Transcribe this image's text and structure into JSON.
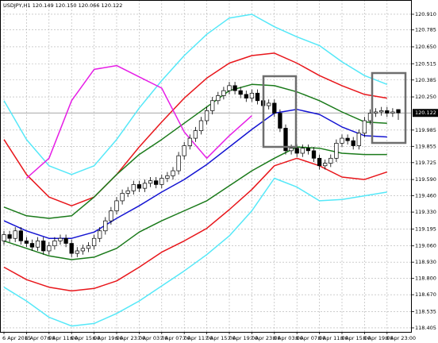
{
  "chart_data": {
    "type": "candlestick",
    "title": "USDJPY,H1 120.149 120.150 120.066 120.122",
    "categories": [
      "6 Apr 2015",
      null,
      null,
      null,
      "6 Apr 07:00",
      null,
      null,
      null,
      "6 Apr 11:00",
      null,
      null,
      null,
      "6 Apr 15:00",
      null,
      null,
      null,
      "6 Apr 19:00",
      null,
      null,
      null,
      "6 Apr 23:00",
      null,
      null,
      null,
      "7 Apr 03:00",
      null,
      null,
      null,
      "7 Apr 07:00",
      null,
      null,
      null,
      "7 Apr 11:00",
      null,
      null,
      null,
      "7 Apr 15:00",
      null,
      null,
      null,
      "7 Apr 19:00",
      null,
      null,
      null,
      "7 Apr 23:00",
      null,
      null,
      null,
      "8 Apr 03:00",
      null,
      null,
      null,
      "8 Apr 07:00",
      null,
      null,
      null,
      "8 Apr 11:00",
      null,
      null,
      null,
      "8 Apr 15:00",
      null,
      null,
      null,
      "8 Apr 19:00",
      null,
      null,
      null,
      "8 Apr 23:00",
      null,
      null
    ],
    "open": [
      119.1,
      119.15,
      119.12,
      119.18,
      119.1,
      119.08,
      119.05,
      119.1,
      119.02,
      119.06,
      119.1,
      119.12,
      119.08,
      119.0,
      119.02,
      119.04,
      119.06,
      119.12,
      119.18,
      119.26,
      119.34,
      119.42,
      119.48,
      119.5,
      119.55,
      119.52,
      119.56,
      119.58,
      119.55,
      119.6,
      119.62,
      119.66,
      119.78,
      119.86,
      119.92,
      119.98,
      120.06,
      120.14,
      120.22,
      120.26,
      120.3,
      120.34,
      120.3,
      120.27,
      120.24,
      120.28,
      120.22,
      120.18,
      120.2,
      120.12,
      120.0,
      119.82,
      119.84,
      119.8,
      119.84,
      119.82,
      119.76,
      119.7,
      119.72,
      119.76,
      119.88,
      119.92,
      119.9,
      119.86,
      119.96,
      120.06,
      120.12,
      120.13,
      120.14,
      120.12,
      120.149
    ],
    "high": [
      119.18,
      119.18,
      119.21,
      119.21,
      119.13,
      119.11,
      119.13,
      119.13,
      119.09,
      119.13,
      119.15,
      119.15,
      119.11,
      119.05,
      119.07,
      119.09,
      119.15,
      119.21,
      119.29,
      119.37,
      119.45,
      119.51,
      119.53,
      119.58,
      119.58,
      119.59,
      119.61,
      119.61,
      119.63,
      119.65,
      119.69,
      119.81,
      119.89,
      119.95,
      120.01,
      120.09,
      120.17,
      120.25,
      120.29,
      120.33,
      120.37,
      120.37,
      120.33,
      120.3,
      120.31,
      120.31,
      120.25,
      120.23,
      120.23,
      120.15,
      120.03,
      119.87,
      119.87,
      119.87,
      119.87,
      119.85,
      119.79,
      119.75,
      119.79,
      119.91,
      119.95,
      119.95,
      119.93,
      119.99,
      120.09,
      120.15,
      120.16,
      120.17,
      120.17,
      120.16,
      120.15
    ],
    "low": [
      119.07,
      119.09,
      119.09,
      119.07,
      119.05,
      119.02,
      119.02,
      118.99,
      118.99,
      119.03,
      119.07,
      119.05,
      118.97,
      118.97,
      118.99,
      119.01,
      119.03,
      119.09,
      119.15,
      119.23,
      119.31,
      119.39,
      119.45,
      119.47,
      119.49,
      119.49,
      119.53,
      119.52,
      119.52,
      119.57,
      119.59,
      119.63,
      119.75,
      119.83,
      119.89,
      119.95,
      120.03,
      120.11,
      120.19,
      120.23,
      120.27,
      120.27,
      120.24,
      120.21,
      120.21,
      120.19,
      120.15,
      120.15,
      120.09,
      119.97,
      119.79,
      119.79,
      119.77,
      119.77,
      119.79,
      119.73,
      119.67,
      119.67,
      119.69,
      119.73,
      119.85,
      119.87,
      119.83,
      119.83,
      119.93,
      120.03,
      120.09,
      120.1,
      120.09,
      120.09,
      120.066
    ],
    "close": [
      119.15,
      119.12,
      119.18,
      119.1,
      119.08,
      119.05,
      119.1,
      119.02,
      119.06,
      119.1,
      119.12,
      119.08,
      119.0,
      119.02,
      119.04,
      119.06,
      119.12,
      119.18,
      119.26,
      119.34,
      119.42,
      119.48,
      119.5,
      119.55,
      119.52,
      119.56,
      119.58,
      119.55,
      119.6,
      119.62,
      119.66,
      119.78,
      119.86,
      119.92,
      119.98,
      120.06,
      120.14,
      120.22,
      120.26,
      120.3,
      120.34,
      120.3,
      120.27,
      120.24,
      120.28,
      120.22,
      120.18,
      120.2,
      120.12,
      120.0,
      119.82,
      119.84,
      119.8,
      119.84,
      119.82,
      119.76,
      119.7,
      119.72,
      119.76,
      119.88,
      119.92,
      119.9,
      119.86,
      119.96,
      120.06,
      120.12,
      120.13,
      120.14,
      120.12,
      120.13,
      120.122
    ],
    "up_color": "#ffffff",
    "down_color": "#000000",
    "ylim": [
      118.373,
      121.024
    ],
    "yticks": [
      {
        "value": 120.91,
        "label": "120.910"
      },
      120.785,
      {
        "value": 120.65,
        "label": "120.650"
      },
      120.515,
      120.385,
      {
        "value": 120.25,
        "label": "120.250"
      },
      119.985,
      119.855,
      119.725,
      {
        "value": 119.59,
        "label": "119.590"
      },
      {
        "value": 119.46,
        "label": "119.460"
      },
      {
        "value": 119.33,
        "label": "119.330"
      },
      119.195,
      {
        "value": 119.06,
        "label": "119.060"
      },
      {
        "value": 118.93,
        "label": "118.930"
      },
      {
        "value": 118.8,
        "label": "118.800"
      },
      {
        "value": 118.67,
        "label": "118.670"
      },
      118.535,
      118.405
    ],
    "current_price": 120.122,
    "grid": true,
    "overlays": {
      "type": "line",
      "x": [
        "6 Apr 2015",
        "6 Apr 07:00",
        "6 Apr 11:00",
        "6 Apr 15:00",
        "6 Apr 19:00",
        "6 Apr 23:00",
        "7 Apr 03:00",
        "7 Apr 07:00",
        "7 Apr 11:00",
        "7 Apr 15:00",
        "7 Apr 19:00",
        "7 Apr 23:00",
        "8 Apr 03:00",
        "8 Apr 07:00",
        "8 Apr 11:00",
        "8 Apr 15:00",
        "8 Apr 19:00",
        "8 Apr 23:00"
      ],
      "series": [
        {
          "color": "#55e8f8",
          "values": [
            120.22,
            119.91,
            119.7,
            119.63,
            119.7,
            119.91,
            120.16,
            120.38,
            120.58,
            120.75,
            120.88,
            120.91,
            120.81,
            120.73,
            120.66,
            120.53,
            120.42,
            120.35
          ]
        },
        {
          "color": "#55e8f8",
          "values": [
            118.73,
            118.62,
            118.49,
            118.42,
            118.44,
            118.52,
            118.62,
            118.74,
            118.86,
            118.99,
            119.14,
            119.34,
            119.6,
            119.53,
            119.42,
            119.43,
            119.46,
            119.49
          ]
        },
        {
          "color": "#e8161b",
          "values": [
            119.91,
            119.63,
            119.45,
            119.38,
            119.45,
            119.63,
            119.85,
            120.05,
            120.24,
            120.4,
            120.52,
            120.58,
            120.6,
            120.52,
            120.42,
            120.34,
            120.27,
            120.24
          ]
        },
        {
          "color": "#e8161b",
          "values": [
            118.89,
            118.79,
            118.73,
            118.7,
            118.72,
            118.78,
            118.89,
            119.01,
            119.1,
            119.2,
            119.35,
            119.51,
            119.7,
            119.76,
            119.7,
            119.61,
            119.59,
            119.65
          ]
        },
        {
          "color": "#1a7a1a",
          "values": [
            119.37,
            119.3,
            119.28,
            119.3,
            119.45,
            119.63,
            119.79,
            119.91,
            120.04,
            120.17,
            120.3,
            120.35,
            120.34,
            120.29,
            120.22,
            120.13,
            120.05,
            120.04
          ]
        },
        {
          "color": "#1a7a1a",
          "values": [
            119.1,
            119.04,
            118.98,
            118.95,
            118.97,
            119.04,
            119.17,
            119.26,
            119.34,
            119.42,
            119.54,
            119.66,
            119.76,
            119.85,
            119.84,
            119.8,
            119.79,
            119.79
          ]
        },
        {
          "color": "#1414d2",
          "values": [
            119.26,
            119.18,
            119.12,
            119.12,
            119.17,
            119.28,
            119.38,
            119.49,
            119.59,
            119.71,
            119.85,
            119.99,
            120.12,
            120.15,
            120.11,
            120.01,
            119.94,
            119.93
          ]
        },
        {
          "color": "#e61ee6",
          "values": [
            null,
            119.6,
            119.76,
            120.22,
            120.47,
            120.5,
            120.41,
            120.32,
            119.97,
            119.76,
            119.94,
            120.1,
            null,
            null,
            null,
            null,
            null,
            null
          ]
        }
      ]
    }
  }
}
